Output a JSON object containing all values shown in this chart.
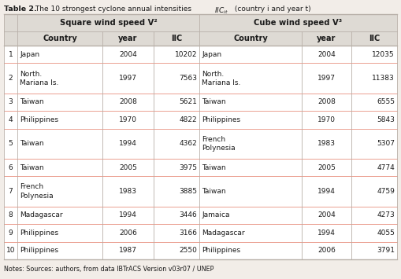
{
  "title_bold": "Table 2.",
  "title_rest": " The 10 strongest cyclone annual intensities ",
  "title_italic": "IIC",
  "title_sub": "it",
  "title_end": " (country i and year t)",
  "notes": "Notes: Sources: authors, from data IBTrACS Version v03r07 / UNEP",
  "group_header_v2": "Square wind speed V²",
  "group_header_v3": "Cube wind speed V³",
  "rows": [
    {
      "rank": "1",
      "v2_country": "Japan",
      "v2_year": "2004",
      "v2_iic": "10202",
      "v3_country": "Japan",
      "v3_year": "2004",
      "v3_iic": "12035"
    },
    {
      "rank": "2",
      "v2_country": "North.\nMariana Is.",
      "v2_year": "1997",
      "v2_iic": "7563",
      "v3_country": "North.\nMariana Is.",
      "v3_year": "1997",
      "v3_iic": "11383"
    },
    {
      "rank": "3",
      "v2_country": "Taiwan",
      "v2_year": "2008",
      "v2_iic": "5621",
      "v3_country": "Taiwan",
      "v3_year": "2008",
      "v3_iic": "6555"
    },
    {
      "rank": "4",
      "v2_country": "Philippines",
      "v2_year": "1970",
      "v2_iic": "4822",
      "v3_country": "Philippines",
      "v3_year": "1970",
      "v3_iic": "5843"
    },
    {
      "rank": "5",
      "v2_country": "Taiwan",
      "v2_year": "1994",
      "v2_iic": "4362",
      "v3_country": "French\nPolynesia",
      "v3_year": "1983",
      "v3_iic": "5307"
    },
    {
      "rank": "6",
      "v2_country": "Taiwan",
      "v2_year": "2005",
      "v2_iic": "3975",
      "v3_country": "Taiwan",
      "v3_year": "2005",
      "v3_iic": "4774"
    },
    {
      "rank": "7",
      "v2_country": "French\nPolynesia",
      "v2_year": "1983",
      "v2_iic": "3885",
      "v3_country": "Taiwan",
      "v3_year": "1994",
      "v3_iic": "4759"
    },
    {
      "rank": "8",
      "v2_country": "Madagascar",
      "v2_year": "1994",
      "v2_iic": "3446",
      "v3_country": "Jamaica",
      "v3_year": "2004",
      "v3_iic": "4273"
    },
    {
      "rank": "9",
      "v2_country": "Philippines",
      "v2_year": "2006",
      "v2_iic": "3166",
      "v3_country": "Madagascar",
      "v3_year": "1994",
      "v3_iic": "4055"
    },
    {
      "rank": "10",
      "v2_country": "Philippines",
      "v2_year": "1987",
      "v2_iic": "2550",
      "v3_country": "Philippines",
      "v3_year": "2006",
      "v3_iic": "3791"
    }
  ],
  "bg_color": "#f2ede8",
  "header_bg": "#dedad4",
  "row_divider_color": "#e89080",
  "text_color": "#1a1a1a",
  "border_color": "#b8b0a8",
  "white_bg": "#ffffff",
  "tall_rows": [
    1,
    4,
    6
  ]
}
